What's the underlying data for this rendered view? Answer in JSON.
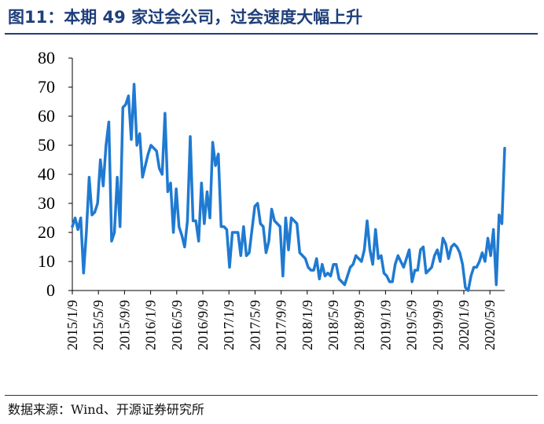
{
  "title": "图11：本期 49 家过会公司，过会速度大幅上升",
  "source": "数据来源：Wind、开源证券研究所",
  "colors": {
    "line": "#1f7ad1",
    "title": "#1f3f7a"
  },
  "chart_data": {
    "type": "line",
    "title": "本期 49 家过会公司，过会速度大幅上升",
    "xlabel": "",
    "ylabel": "",
    "ylim": [
      0,
      80
    ],
    "yticks": [
      0,
      10,
      20,
      30,
      40,
      50,
      60,
      70,
      80
    ],
    "xticks": [
      "2015/1/9",
      "2015/5/9",
      "2015/9/9",
      "2016/1/9",
      "2016/5/9",
      "2016/9/9",
      "2017/1/9",
      "2017/5/9",
      "2017/9/9",
      "2018/1/9",
      "2018/5/9",
      "2018/9/9",
      "2019/1/9",
      "2019/5/9",
      "2019/9/9",
      "2020/1/9",
      "2020/5/9"
    ],
    "grid": false,
    "legend": "none",
    "series": [
      {
        "values": [
          22,
          25,
          21,
          25,
          6,
          20,
          39,
          26,
          27,
          30,
          45,
          36,
          50,
          58,
          17,
          20,
          39,
          22,
          63,
          64,
          67,
          52,
          71,
          50,
          54,
          39,
          43,
          47,
          50,
          49,
          48,
          42,
          40,
          61,
          34,
          37,
          20,
          35,
          22,
          19,
          15,
          24,
          53,
          24,
          24,
          17,
          37,
          23,
          34,
          25,
          51,
          43,
          47,
          22,
          22,
          21,
          8,
          20,
          20,
          20,
          12,
          22,
          12,
          13,
          21,
          29,
          30,
          23,
          22,
          13,
          17,
          28,
          24,
          23,
          22,
          5,
          25,
          14,
          25,
          24,
          23,
          13,
          12,
          11,
          8,
          7,
          7,
          11,
          4,
          9,
          5,
          6,
          5,
          9,
          9,
          4,
          3,
          2,
          5,
          8,
          9,
          12,
          11,
          10,
          14,
          24,
          14,
          9,
          21,
          11,
          12,
          6,
          5,
          3,
          3,
          9,
          12,
          10,
          8,
          11,
          14,
          3,
          7,
          7,
          14,
          15,
          6,
          7,
          8,
          12,
          14,
          10,
          18,
          16,
          11,
          15,
          16,
          15,
          13,
          9,
          1,
          0,
          5,
          8,
          8,
          10,
          13,
          10,
          18,
          12,
          21,
          2,
          26,
          23,
          49
        ]
      }
    ]
  }
}
